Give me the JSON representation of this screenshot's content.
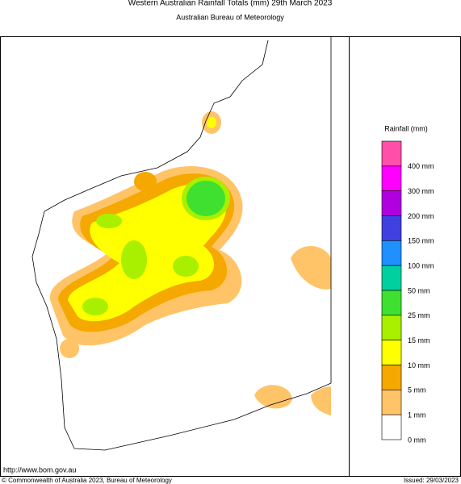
{
  "header": {
    "title": "Western Australian Rainfall Totals (mm) 29th March 2023",
    "subtitle": "Australian Bureau of Meteorology"
  },
  "legend": {
    "title": "Rainfall (mm)",
    "colors": [
      "#ff4fa8",
      "#ff00ff",
      "#b000e0",
      "#4040e0",
      "#2090ff",
      "#00d0a0",
      "#40e030",
      "#a8f000",
      "#ffff00",
      "#f4a800",
      "#ffc468",
      "#ffffff"
    ],
    "labels": [
      "400 mm",
      "300 mm",
      "200 mm",
      "150 mm",
      "100 mm",
      "50 mm",
      "25 mm",
      "15 mm",
      "10 mm",
      "5 mm",
      "1 mm",
      "0 mm"
    ]
  },
  "footer": {
    "url": "http://www.bom.gov.au",
    "copyright": "© Commonwealth of Australia 2023, Bureau of Meteorology",
    "issued": "Issued: 29/03/2023"
  }
}
